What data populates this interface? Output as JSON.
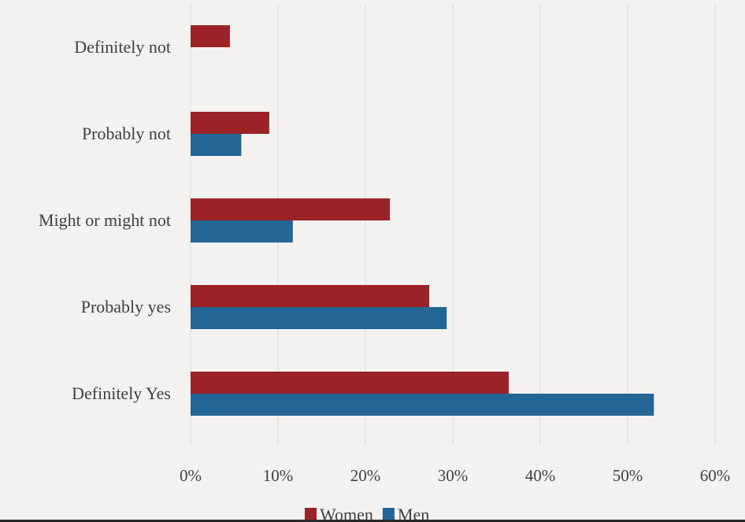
{
  "chart_data": {
    "type": "bar",
    "orientation": "horizontal",
    "categories": [
      "Definitely not",
      "Probably not",
      "Might or might not",
      "Probably yes",
      "Definitely Yes"
    ],
    "series": [
      {
        "name": "Women",
        "values": [
          4.5,
          9.0,
          22.8,
          27.3,
          36.4
        ],
        "color": "#9b2226"
      },
      {
        "name": "Men",
        "values": [
          0,
          5.8,
          11.7,
          29.3,
          53.0
        ],
        "color": "#236594"
      }
    ],
    "xlim": [
      0,
      60
    ],
    "xticks": [
      0,
      10,
      20,
      30,
      40,
      50,
      60
    ],
    "tick_format": "{v}%",
    "grid": true,
    "legend_position": "bottom"
  },
  "colors": {
    "background": "#f3f2f0",
    "gridline": "#d9d9d9",
    "text": "#404040"
  }
}
